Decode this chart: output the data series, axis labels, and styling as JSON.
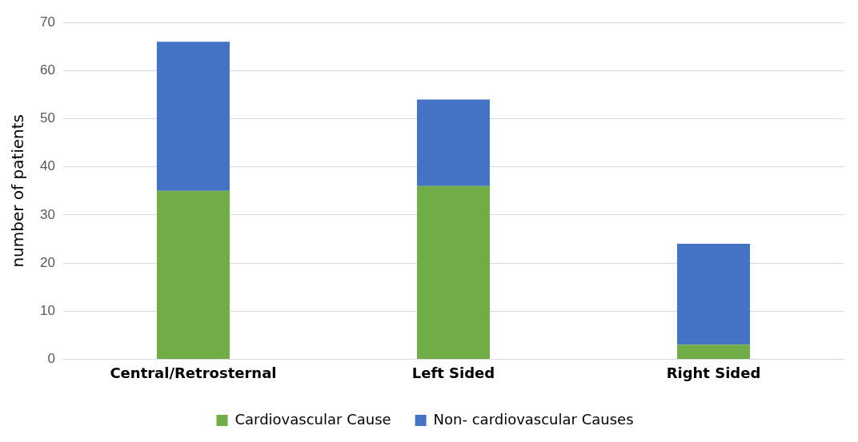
{
  "chart_data": {
    "type": "bar",
    "stacked": true,
    "ylabel": "number of patients",
    "categories": [
      "Central/Retrosternal",
      "Left Sided",
      "Right Sided"
    ],
    "series": [
      {
        "name": "Cardiovascular Cause",
        "color": "#70ad47",
        "values": [
          35,
          36,
          3
        ]
      },
      {
        "name": "Non- cardiovascular Causes",
        "color": "#4472c4",
        "values": [
          31,
          18,
          21
        ]
      }
    ],
    "ylim": [
      0,
      70
    ],
    "yticks": [
      0,
      10,
      20,
      30,
      40,
      50,
      60,
      70
    ],
    "grid": "y",
    "legend": "bottom"
  }
}
